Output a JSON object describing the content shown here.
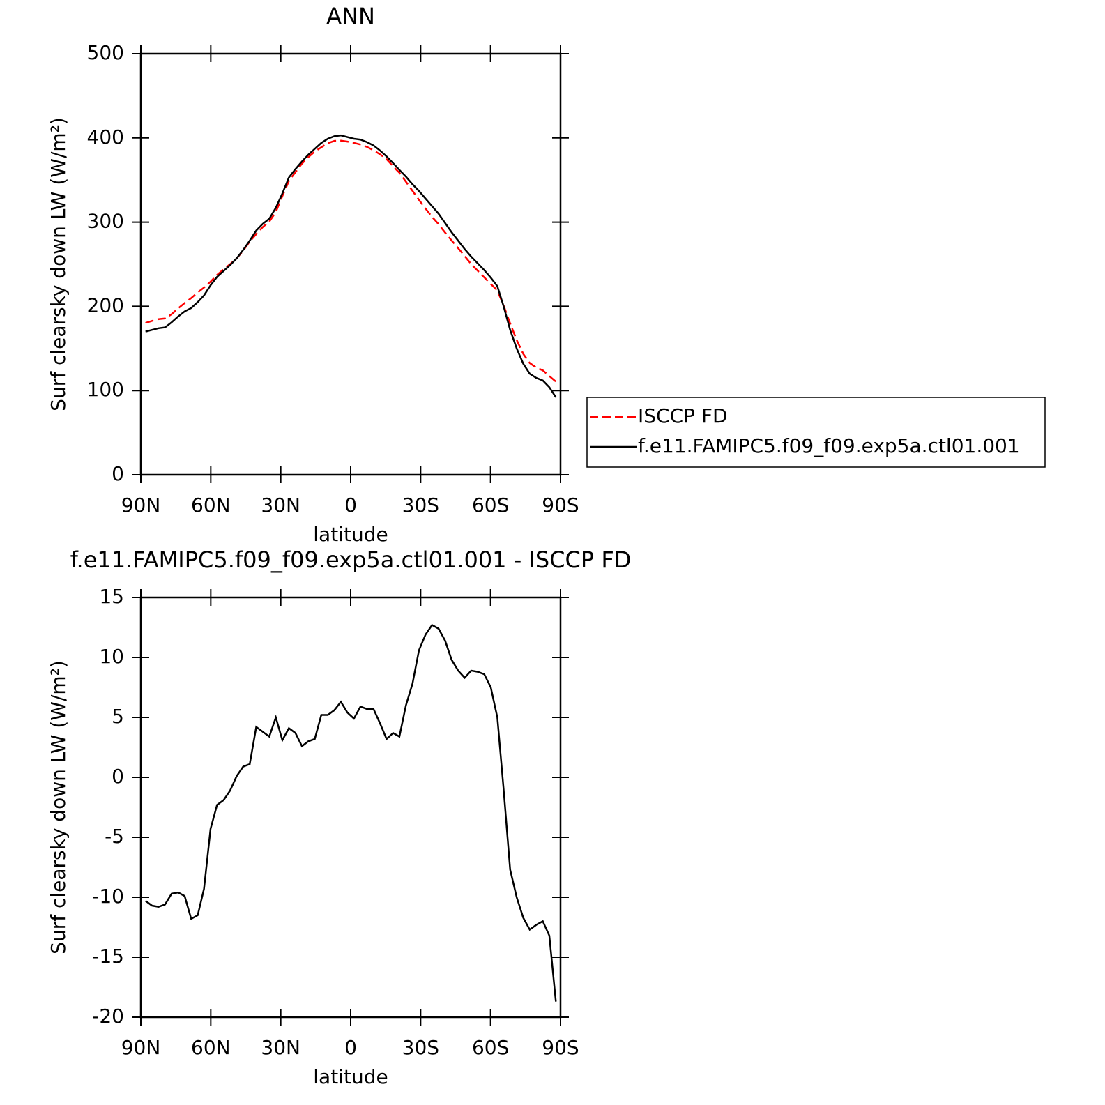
{
  "chart_data": [
    {
      "type": "line",
      "title": "ANN",
      "xlabel": "latitude",
      "ylabel": "Surf clearsky down LW (W/m²)",
      "x": [
        88.0,
        85.2,
        82.4,
        79.6,
        76.8,
        74.0,
        71.2,
        68.4,
        65.6,
        62.9,
        60.1,
        57.3,
        54.5,
        51.7,
        48.9,
        46.1,
        43.3,
        40.5,
        37.7,
        34.9,
        32.1,
        29.3,
        26.5,
        23.7,
        20.9,
        18.2,
        15.4,
        12.6,
        9.8,
        7.0,
        4.2,
        1.4,
        -1.4,
        -4.2,
        -7.0,
        -9.8,
        -12.6,
        -15.4,
        -18.2,
        -20.9,
        -23.7,
        -26.5,
        -29.3,
        -32.1,
        -34.9,
        -37.7,
        -40.5,
        -43.3,
        -46.1,
        -48.9,
        -51.7,
        -54.5,
        -57.3,
        -60.1,
        -62.9,
        -65.6,
        -68.4,
        -71.2,
        -74.0,
        -76.8,
        -79.6,
        -82.4,
        -85.2,
        -88.0
      ],
      "xlim": [
        90,
        -90
      ],
      "xticks": [
        {
          "value": 90,
          "label": "90N"
        },
        {
          "value": 60,
          "label": "60N"
        },
        {
          "value": 30,
          "label": "30N"
        },
        0,
        {
          "value": -30,
          "label": "30S"
        },
        {
          "value": -60,
          "label": "60S"
        },
        {
          "value": -90,
          "label": "90S"
        }
      ],
      "ylim": [
        0,
        500
      ],
      "yticks": [
        0,
        100,
        200,
        300,
        400,
        500
      ],
      "legend": "right",
      "series": [
        {
          "name": "ISCCP FD",
          "color": "#ff0000",
          "dash": true,
          "values": [
            180.3,
            182.7,
            184.8,
            185.6,
            190.7,
            197.6,
            203.9,
            209.8,
            216.5,
            222.3,
            229.3,
            237.3,
            243.9,
            250.1,
            256.9,
            266.1,
            276.9,
            285.8,
            294.2,
            300.6,
            312.0,
            330.9,
            348.9,
            359.3,
            369.4,
            377.0,
            383.8,
            388.8,
            393.8,
            396.4,
            396.7,
            395.6,
            394.1,
            392.1,
            389.3,
            385.3,
            380.5,
            374.8,
            366.3,
            358.6,
            348.0,
            337.2,
            326.4,
            316.1,
            306.3,
            297.6,
            287.6,
            278.2,
            269.1,
            259.7,
            250.1,
            242.2,
            234.4,
            226.5,
            219.0,
            201.0,
            179.7,
            160.0,
            143.7,
            132.7,
            127.3,
            124.0,
            117.2,
            110.7
          ]
        },
        {
          "name": "f.e11.FAMIPC5.f09_f09.exp5a.ctl01.001",
          "color": "#000000",
          "dash": false,
          "values": [
            170,
            172,
            174,
            175,
            181,
            188,
            194,
            198,
            205,
            213,
            225,
            235,
            242,
            249,
            257,
            267,
            278,
            290,
            298,
            304,
            317,
            334,
            353,
            363,
            372,
            380,
            387,
            394,
            399,
            402,
            403,
            401,
            399,
            398,
            395,
            391,
            385,
            378,
            370,
            362,
            354,
            345,
            337,
            328,
            319,
            310,
            299,
            288,
            278,
            268,
            259,
            251,
            243,
            234,
            224,
            200,
            172,
            150,
            132,
            120,
            115,
            112,
            104,
            92
          ]
        }
      ]
    },
    {
      "type": "line",
      "title": "f.e11.FAMIPC5.f09_f09.exp5a.ctl01.001 - ISCCP FD",
      "xlabel": "latitude",
      "ylabel": "Surf clearsky down LW (W/m²)",
      "x": [
        88.0,
        85.2,
        82.4,
        79.6,
        76.8,
        74.0,
        71.2,
        68.4,
        65.6,
        62.9,
        60.1,
        57.3,
        54.5,
        51.7,
        48.9,
        46.1,
        43.3,
        40.5,
        37.7,
        34.9,
        32.1,
        29.3,
        26.5,
        23.7,
        20.9,
        18.2,
        15.4,
        12.6,
        9.8,
        7.0,
        4.2,
        1.4,
        -1.4,
        -4.2,
        -7.0,
        -9.8,
        -12.6,
        -15.4,
        -18.2,
        -20.9,
        -23.7,
        -26.5,
        -29.3,
        -32.1,
        -34.9,
        -37.7,
        -40.5,
        -43.3,
        -46.1,
        -48.9,
        -51.7,
        -54.5,
        -57.3,
        -60.1,
        -62.9,
        -65.6,
        -68.4,
        -71.2,
        -74.0,
        -76.8,
        -79.6,
        -82.4,
        -85.2,
        -88.0
      ],
      "xlim": [
        90,
        -90
      ],
      "xticks": [
        {
          "value": 90,
          "label": "90N"
        },
        {
          "value": 60,
          "label": "60N"
        },
        {
          "value": 30,
          "label": "30N"
        },
        0,
        {
          "value": -30,
          "label": "30S"
        },
        {
          "value": -60,
          "label": "60S"
        },
        {
          "value": -90,
          "label": "90S"
        }
      ],
      "ylim": [
        -20,
        15
      ],
      "yticks": [
        -20,
        -15,
        -10,
        -5,
        0,
        5,
        10,
        15
      ],
      "series": [
        {
          "color": "#000000",
          "dash": false,
          "values": [
            -10.3,
            -10.7,
            -10.8,
            -10.6,
            -9.7,
            -9.6,
            -9.9,
            -11.8,
            -11.5,
            -9.3,
            -4.3,
            -2.3,
            -1.9,
            -1.1,
            0.1,
            0.9,
            1.1,
            4.2,
            3.8,
            3.4,
            5.0,
            3.1,
            4.1,
            3.7,
            2.6,
            3.0,
            3.2,
            5.2,
            5.2,
            5.6,
            6.3,
            5.4,
            4.9,
            5.9,
            5.7,
            5.7,
            4.5,
            3.2,
            3.7,
            3.4,
            6.0,
            7.8,
            10.6,
            11.9,
            12.7,
            12.4,
            11.4,
            9.8,
            8.9,
            8.3,
            8.9,
            8.8,
            8.6,
            7.5,
            5.0,
            -1.0,
            -7.7,
            -10.0,
            -11.7,
            -12.7,
            -12.3,
            -12.0,
            -13.2,
            -18.7
          ]
        }
      ]
    }
  ]
}
